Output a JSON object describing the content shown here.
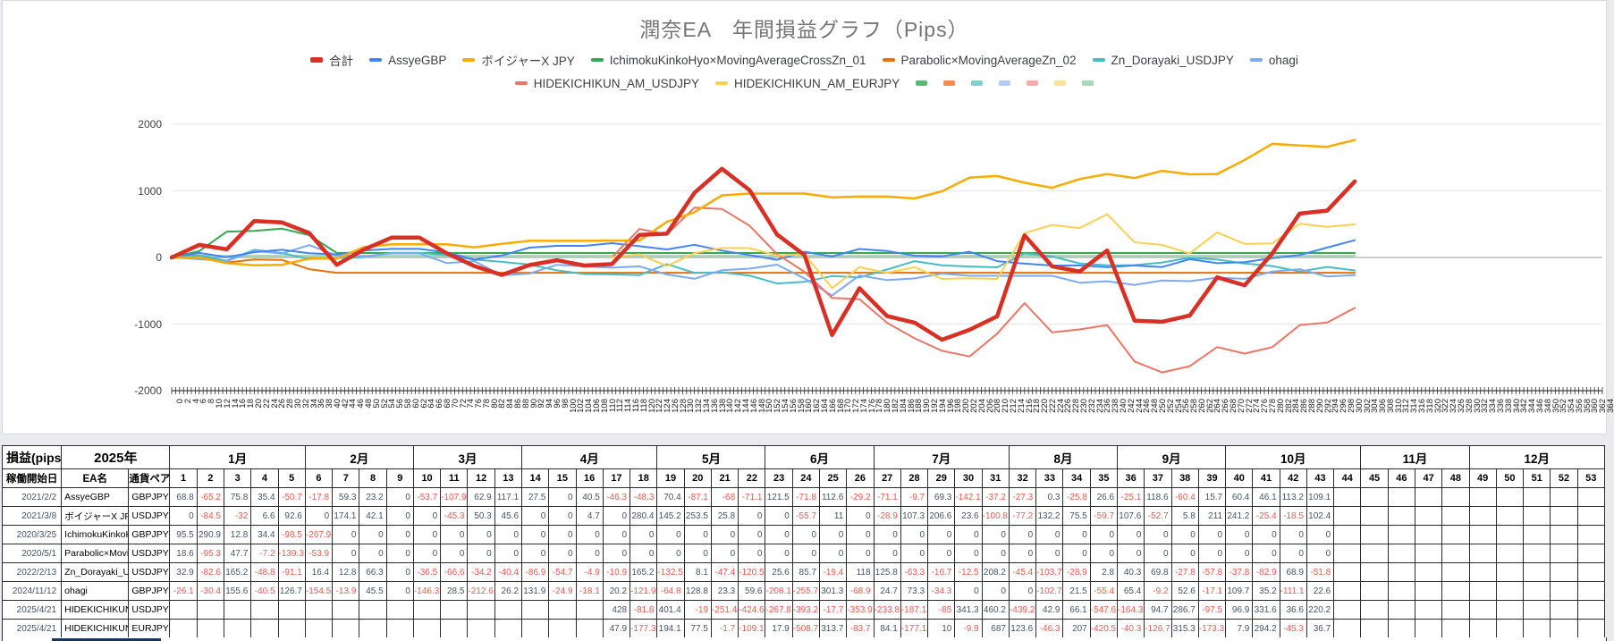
{
  "chart_data": {
    "type": "line",
    "title": "潤奈EA　年間損益グラフ（Pips）",
    "x_axis": {
      "unit": "day",
      "min": 0,
      "max": 364,
      "tick_step": 1,
      "label_step": 2
    },
    "y_axis": {
      "min": -2000,
      "max": 2000,
      "tick_interval": 1000,
      "ticks": [
        2000,
        1000,
        0,
        -1000,
        -2000
      ]
    },
    "point_interval_days": 7,
    "grid": true,
    "legend_position": "top",
    "total_series": {
      "name": "合計",
      "color": "#d93025",
      "line_width": 4.5
    },
    "series": [
      {
        "name": "AssyeGBP",
        "color": "#4285f4",
        "start_week": 1,
        "weekly": [
          68.8,
          -65.2,
          75.8,
          35.4,
          -50.7,
          -17.8,
          59.3,
          23.2,
          0,
          -53.7,
          -107.9,
          62.9,
          117.1,
          27.5,
          0,
          40.5,
          -46.3,
          -48.3,
          70.4,
          -87.1,
          -68,
          -71.1,
          121.5,
          -71.8,
          112.6,
          -29.2,
          -71.1,
          -9.7,
          69.3,
          -142.1,
          -37.2,
          -27.3,
          0.3,
          -25.8,
          26.6,
          -25.1,
          118.6,
          -60.4,
          15.7,
          60.4,
          46.1,
          113.2,
          109.1
        ]
      },
      {
        "name": "ボイジャーX JPY",
        "color": "#f9ab00",
        "start_week": 1,
        "weekly": [
          0,
          -84.5,
          -32,
          6.6,
          92.6,
          0,
          174.1,
          42.1,
          0,
          0,
          -45.3,
          50.3,
          45.6,
          0,
          0,
          4.7,
          0,
          280.4,
          145.2,
          253.5,
          25.8,
          0,
          0,
          -55.7,
          11,
          0,
          -28.9,
          107.3,
          206.6,
          23.6,
          -100.8,
          -77.2,
          132.2,
          75.5,
          -59.7,
          107.6,
          -52.7,
          5.8,
          211,
          241.2,
          -25.4,
          -18.5,
          102.4
        ]
      },
      {
        "name": "IchimokuKinkoHyo×MovingAverageCrossZn_01",
        "color": "#34a853",
        "start_week": 1,
        "weekly": [
          95.5,
          290.9,
          12.8,
          34.4,
          -98.5,
          -267.9,
          0,
          0,
          0,
          0,
          0,
          0,
          0,
          0,
          0,
          0,
          0,
          0,
          0,
          0,
          0,
          0,
          0,
          0,
          0,
          0,
          0,
          0,
          0,
          0,
          0,
          0,
          0,
          0,
          0,
          0,
          0,
          0,
          0,
          0,
          0,
          0,
          0
        ]
      },
      {
        "name": "Parabolic×MovingAverageZn_02",
        "color": "#e8710a",
        "start_week": 1,
        "weekly": [
          18.6,
          -95.3,
          47.7,
          -7.2,
          -139.3,
          -53.9,
          0,
          0,
          0,
          0,
          0,
          0,
          0,
          0,
          0,
          0,
          0,
          0,
          0,
          0,
          0,
          0,
          0,
          0,
          0,
          0,
          0,
          0,
          0,
          0,
          0,
          0,
          0,
          0,
          0,
          0,
          0,
          0,
          0,
          0,
          0,
          0,
          0
        ]
      },
      {
        "name": "Zn_Dorayaki_USDJPY",
        "color": "#46bdc6",
        "start_week": 1,
        "weekly": [
          32.9,
          -82.6,
          165.2,
          -48.8,
          -91.1,
          16.4,
          12.8,
          66.3,
          0,
          -36.5,
          -66.6,
          -34.2,
          -40.4,
          -86.9,
          -54.7,
          -4.9,
          -10.9,
          165.2,
          -132.5,
          8.1,
          -47.4,
          -120.5,
          25.6,
          85.7,
          -19.4,
          118,
          125.8,
          -63.3,
          -16.7,
          -12.5,
          208.2,
          -45.4,
          -103.7,
          -28.9,
          2.8,
          40.3,
          69.8,
          -27.8,
          -57.8,
          -37.8,
          -82.9,
          68.9,
          -51.8
        ]
      },
      {
        "name": "ohagi",
        "color": "#7baaf7",
        "start_week": 1,
        "weekly": [
          -26.1,
          -30.4,
          155.6,
          -40.5,
          126.7,
          -154.5,
          -13.9,
          45.5,
          0,
          -146.3,
          28.5,
          -212.6,
          26.2,
          131.9,
          -24.9,
          -18.1,
          20.2,
          -121.9,
          -64.8,
          128.8,
          23.3,
          59.6,
          -208.1,
          -255.7,
          301.3,
          -68.9,
          24.7,
          73.3,
          -34.3,
          0,
          0,
          0,
          -102.7,
          21.5,
          -55.4,
          65.4,
          -9.2,
          52.6,
          -17.1,
          109.7,
          35.2,
          -111.1,
          22.6
        ]
      },
      {
        "name": "HIDEKICHIKUN_AM_USDJPY",
        "color": "#ee7565",
        "start_week": 17,
        "weekly": [
          null,
          null,
          null,
          null,
          null,
          null,
          null,
          null,
          null,
          null,
          null,
          null,
          null,
          null,
          null,
          null,
          428,
          -81.8,
          401.4,
          -19,
          -251.4,
          -424.6,
          -267.8,
          -393.2,
          -17.7,
          -353.9,
          -233.8,
          -187.1,
          -85,
          341.3,
          460.2,
          -439.2,
          42.9,
          66.1,
          -547.6,
          -164.3,
          94.7,
          286.7,
          -97.5,
          96.9,
          331.6,
          36.6,
          220.2
        ]
      },
      {
        "name": "HIDEKICHIKUN_AM_EURJPY",
        "color": "#fcd04f",
        "start_week": 17,
        "weekly": [
          null,
          null,
          null,
          null,
          null,
          null,
          null,
          null,
          null,
          null,
          null,
          null,
          null,
          null,
          null,
          null,
          47.9,
          -177.3,
          194.1,
          77.5,
          -1.7,
          -109.1,
          17.9,
          -508.7,
          313.7,
          -83.7,
          84.1,
          -177.1,
          10,
          -9.9,
          687,
          123.6,
          -46.3,
          207,
          -420.5,
          -40.3,
          -126.7,
          315.3,
          -173.3,
          7.9,
          294.2,
          -45.3,
          36.7
        ]
      }
    ],
    "unlabeled_flat_series": [
      {
        "name": "",
        "color": "#a8dab5",
        "value": 25
      }
    ],
    "extra_legend_swatches": [
      "#5bb974",
      "#ff8a50",
      "#7fd1d1",
      "#aecbfa",
      "#f6aea9",
      "#fde293",
      "#a8dab5"
    ],
    "legend_rows": [
      [
        "合計",
        "AssyeGBP",
        "ボイジャーX JPY",
        "IchimokuKinkoHyo×MovingAverageCrossZn_01",
        "Parabolic×MovingAverageZn_02",
        "Zn_Dorayaki_USDJPY",
        "ohagi"
      ],
      [
        "HIDEKICHIKUN_AM_USDJPY",
        "HIDEKICHIKUN_AM_EURJPY"
      ]
    ]
  },
  "table": {
    "corner_label": "損益(pips)",
    "year_label": "2025年",
    "header2": [
      "稼働開始日",
      "EA名",
      "通貨ペア"
    ],
    "months": [
      {
        "label": "1月",
        "weeks": 5
      },
      {
        "label": "2月",
        "weeks": 4
      },
      {
        "label": "3月",
        "weeks": 4
      },
      {
        "label": "4月",
        "weeks": 5
      },
      {
        "label": "5月",
        "weeks": 4
      },
      {
        "label": "6月",
        "weeks": 4
      },
      {
        "label": "7月",
        "weeks": 5
      },
      {
        "label": "8月",
        "weeks": 4
      },
      {
        "label": "9月",
        "weeks": 4
      },
      {
        "label": "10月",
        "weeks": 5
      },
      {
        "label": "11月",
        "weeks": 4
      },
      {
        "label": "12月",
        "weeks": 5
      }
    ],
    "total_weeks": 53,
    "data_weeks": 43,
    "rows": [
      {
        "start_date": "2021/2/2",
        "ea_name": "AssyeGBP",
        "pair": "GBPJPY",
        "series_ref": 0
      },
      {
        "start_date": "2021/3/8",
        "ea_name": "ボイジャーX JPY",
        "pair": "USDJPY",
        "series_ref": 1
      },
      {
        "start_date": "2020/3/25",
        "ea_name": "IchimokuKinkoHyo×MovingAverageCrossZn_01",
        "pair": "GBPJPY",
        "series_ref": 2
      },
      {
        "start_date": "2020/5/1",
        "ea_name": "Parabolic×MovingAverageZn_02",
        "pair": "USDJPY",
        "series_ref": 3
      },
      {
        "start_date": "2022/2/13",
        "ea_name": "Zn_Dorayaki_USDJPY",
        "pair": "USDJPY",
        "series_ref": 4
      },
      {
        "start_date": "2024/11/12",
        "ea_name": "ohagi",
        "pair": "GBPJPY",
        "series_ref": 5
      },
      {
        "start_date": "2025/4/21",
        "ea_name": "HIDEKICHIKUN_AM_USDJPY",
        "pair": "USDJPY",
        "series_ref": 6
      },
      {
        "start_date": "2025/4/21",
        "ea_name": "HIDEKICHIKUN_AM_EURJPY",
        "pair": "EURJPY",
        "series_ref": 7
      }
    ]
  }
}
